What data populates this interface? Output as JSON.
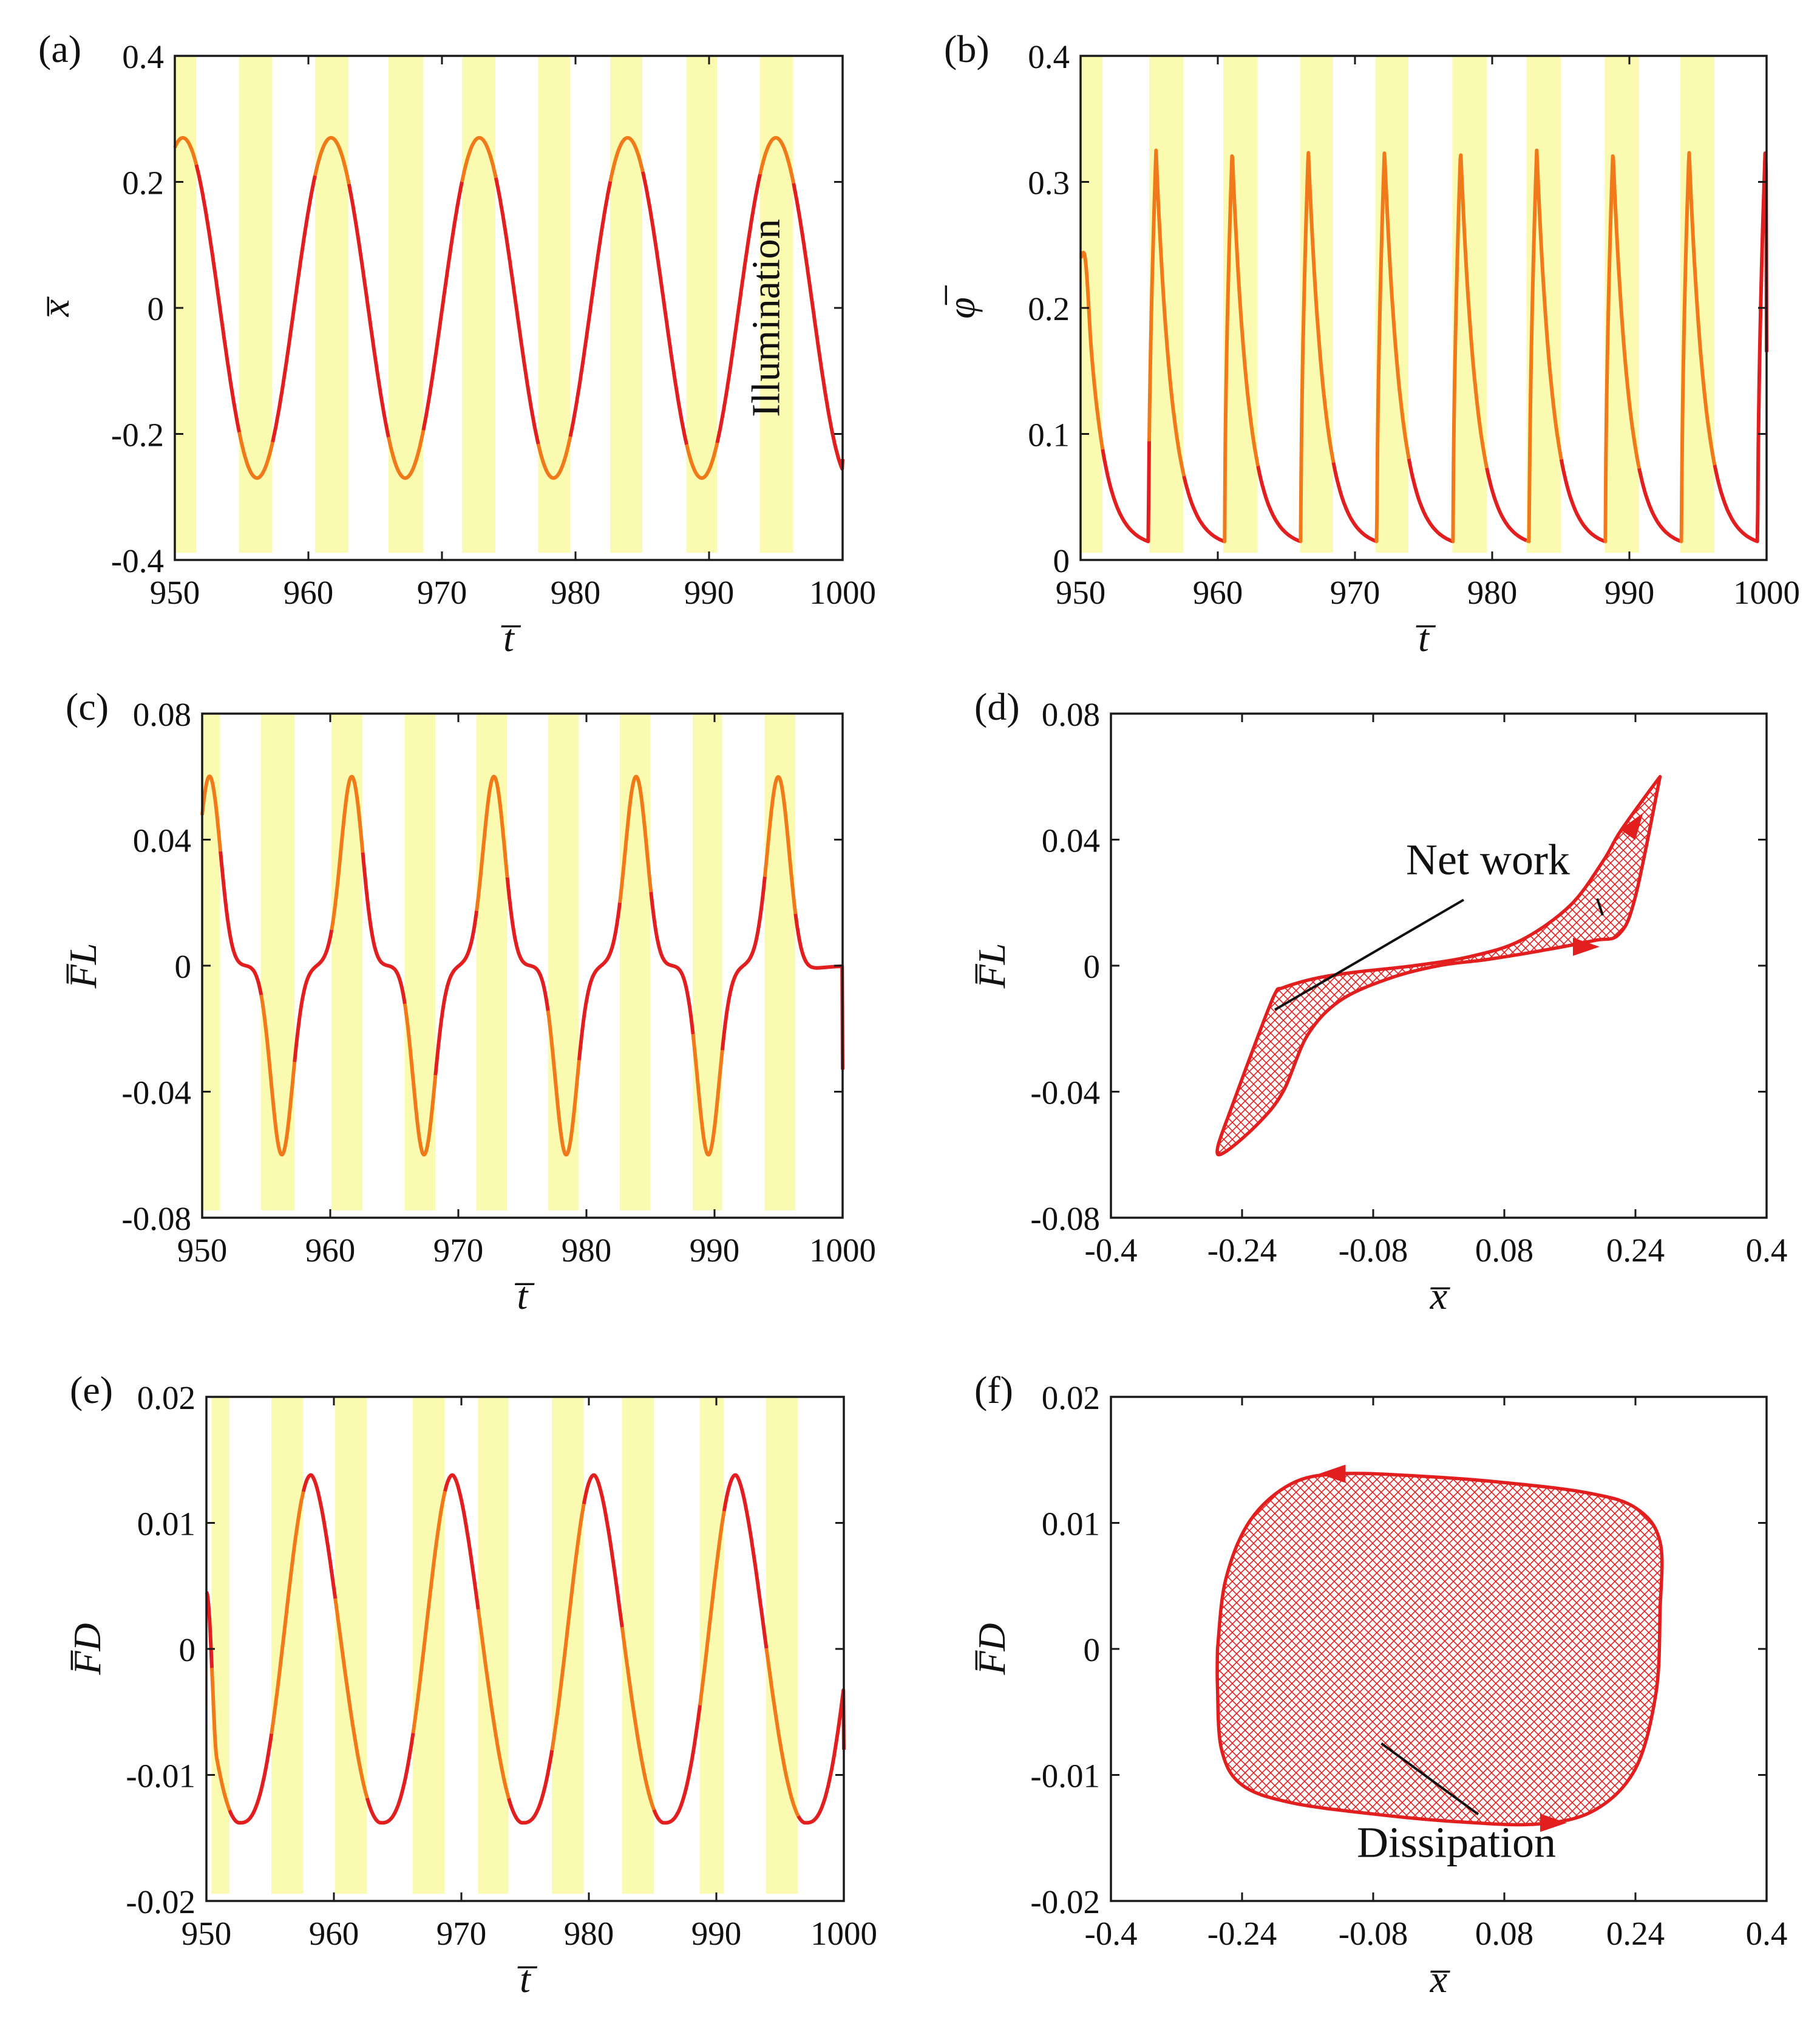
{
  "figure": {
    "illumination_label": "Illumination",
    "colors": {
      "curve": "#e31e1e",
      "curve_lit": "#f07a1a",
      "band": "#fafab0",
      "axes": "#1a1a1a",
      "annotation": "#111111"
    }
  },
  "chart_data": [
    {
      "id": "a",
      "type": "line",
      "panel_label": "(a)",
      "xlabel": "t̅",
      "ylabel": "x̅",
      "xlim": [
        950,
        1000
      ],
      "ylim": [
        -0.4,
        0.4
      ],
      "xticks": [
        950,
        960,
        970,
        980,
        990,
        1000
      ],
      "yticks": [
        -0.4,
        -0.2,
        0,
        0.2,
        0.4
      ],
      "ytick_labels": [
        "-0.4",
        "-0.2",
        "0",
        "0.2",
        "0.4"
      ],
      "illumination_bands": [
        [
          950,
          951.6
        ],
        [
          954.8,
          957.3
        ],
        [
          960.5,
          963
        ],
        [
          966,
          968.6
        ],
        [
          971.5,
          974
        ],
        [
          977.2,
          979.6
        ],
        [
          982.6,
          985
        ],
        [
          988.3,
          990.6
        ],
        [
          993.8,
          996.3
        ]
      ],
      "series": [
        {
          "name": "x",
          "model": "cos",
          "amplitude": 0.27,
          "period": 11.1,
          "peak_at": 950.6,
          "end": [
            1000,
            -0.24
          ]
        }
      ]
    },
    {
      "id": "b",
      "type": "line",
      "panel_label": "(b)",
      "xlabel": "t̅",
      "ylabel": "φ̅",
      "xlim": [
        950,
        1000
      ],
      "ylim": [
        0,
        0.4
      ],
      "xticks": [
        950,
        960,
        970,
        980,
        990,
        1000
      ],
      "yticks": [
        0,
        0.1,
        0.2,
        0.3,
        0.4
      ],
      "ytick_labels": [
        "0",
        "0.1",
        "0.2",
        "0.3",
        "0.4"
      ],
      "illumination_bands": [
        [
          950,
          951.6
        ],
        [
          955,
          957.5
        ],
        [
          960.4,
          962.9
        ],
        [
          966,
          968.4
        ],
        [
          971.5,
          973.9
        ],
        [
          977.1,
          979.6
        ],
        [
          982.5,
          985
        ],
        [
          988.2,
          990.7
        ],
        [
          993.7,
          996.2
        ]
      ],
      "series": [
        {
          "name": "phi",
          "model": "sawtooth",
          "min": 0.01,
          "max": 0.325,
          "period": 5.55,
          "start": [
            950,
            0.24
          ],
          "end": [
            1000,
            0.165
          ]
        }
      ]
    },
    {
      "id": "c",
      "type": "line",
      "panel_label": "(c)",
      "xlabel": "t̅",
      "ylabel": "F̅L",
      "xlim": [
        950,
        1000
      ],
      "ylim": [
        -0.08,
        0.08
      ],
      "xticks": [
        950,
        960,
        970,
        980,
        990,
        1000
      ],
      "yticks": [
        -0.08,
        -0.04,
        0,
        0.04,
        0.08
      ],
      "ytick_labels": [
        "-0.08",
        "-0.04",
        "0",
        "0.04",
        "0.08"
      ],
      "illumination_bands": [
        [
          950,
          951.4
        ],
        [
          954.6,
          957.2
        ],
        [
          960.1,
          962.5
        ],
        [
          965.8,
          968.2
        ],
        [
          971.4,
          973.8
        ],
        [
          977,
          979.4
        ],
        [
          982.6,
          985
        ],
        [
          988.3,
          990.6
        ],
        [
          993.9,
          996.3
        ]
      ],
      "series": [
        {
          "name": "F_L",
          "model": "pulse",
          "amplitude": 0.06,
          "period": 11.1,
          "peaks": [
            950.6,
            961.7,
            972.8,
            983.9,
            995
          ],
          "troughs": [
            956.2,
            967.3,
            978.4,
            989.5
          ],
          "end": [
            1000,
            -0.033
          ]
        }
      ]
    },
    {
      "id": "d",
      "type": "loop",
      "panel_label": "(d)",
      "xlabel": "x̅",
      "ylabel": "F̅L",
      "xlim": [
        -0.4,
        0.4
      ],
      "ylim": [
        -0.08,
        0.08
      ],
      "xticks": [
        -0.4,
        -0.24,
        -0.08,
        0.08,
        0.24,
        0.4
      ],
      "xtick_labels": [
        "-0.4",
        "-0.24",
        "-0.08",
        "0.08",
        "0.24",
        "0.4"
      ],
      "yticks": [
        -0.08,
        -0.04,
        0,
        0.04,
        0.08
      ],
      "ytick_labels": [
        "-0.08",
        "-0.04",
        "0",
        "0.04",
        "0.08"
      ],
      "loop": [
        [
          0.27,
          0.06
        ],
        [
          0.25,
          0.053
        ],
        [
          0.22,
          0.042
        ],
        [
          0.2,
          0.033
        ],
        [
          0.16,
          0.019
        ],
        [
          0.1,
          0.008
        ],
        [
          0.04,
          0.003
        ],
        [
          -0.03,
          0.0
        ],
        [
          -0.1,
          -0.002
        ],
        [
          -0.15,
          -0.004
        ],
        [
          -0.19,
          -0.007
        ],
        [
          -0.2,
          -0.009
        ],
        [
          -0.22,
          -0.022
        ],
        [
          -0.25,
          -0.043
        ],
        [
          -0.27,
          -0.058
        ],
        [
          -0.26,
          -0.059
        ],
        [
          -0.22,
          -0.05
        ],
        [
          -0.19,
          -0.04
        ],
        [
          -0.16,
          -0.022
        ],
        [
          -0.12,
          -0.011
        ],
        [
          -0.06,
          -0.004
        ],
        [
          0.0,
          0.0
        ],
        [
          0.06,
          0.002
        ],
        [
          0.13,
          0.005
        ],
        [
          0.19,
          0.008
        ],
        [
          0.22,
          0.01
        ],
        [
          0.24,
          0.022
        ],
        [
          0.27,
          0.06
        ]
      ],
      "annotation": {
        "text": "Net work",
        "at": [
          -0.04,
          0.029
        ],
        "pointers": [
          [
            -0.2,
            -0.014
          ],
          [
            0.2,
            0.016
          ]
        ]
      },
      "arrows": [
        [
          0.24,
          0.045,
          "up-right"
        ],
        [
          0.18,
          0.006,
          "right"
        ]
      ]
    },
    {
      "id": "e",
      "type": "line",
      "panel_label": "(e)",
      "xlabel": "t̅",
      "ylabel": "F̅D",
      "xlim": [
        950,
        1000
      ],
      "ylim": [
        -0.02,
        0.02
      ],
      "xticks": [
        950,
        960,
        970,
        980,
        990,
        1000
      ],
      "yticks": [
        -0.02,
        -0.01,
        0,
        0.01,
        0.02
      ],
      "ytick_labels": [
        "-0.02",
        "-0.01",
        "0",
        "0.01",
        "0.02"
      ],
      "illumination_bands": [
        [
          950.4,
          951.8
        ],
        [
          955.1,
          957.6
        ],
        [
          960.1,
          962.6
        ],
        [
          966.2,
          968.7
        ],
        [
          971.3,
          973.7
        ],
        [
          977.1,
          979.6
        ],
        [
          982.6,
          985.1
        ],
        [
          988.7,
          990.6
        ],
        [
          993.9,
          996.4
        ]
      ],
      "series": [
        {
          "name": "F_D",
          "model": "tanh",
          "amplitude": 0.0138,
          "period": 11.1,
          "max_at": 958.2,
          "min_at": 952.6,
          "start": [
            950,
            0.0045
          ],
          "end": [
            1000,
            -0.008
          ]
        }
      ]
    },
    {
      "id": "f",
      "type": "loop",
      "panel_label": "(f)",
      "xlabel": "x̅",
      "ylabel": "F̅D",
      "xlim": [
        -0.4,
        0.4
      ],
      "ylim": [
        -0.02,
        0.02
      ],
      "xticks": [
        -0.4,
        -0.24,
        -0.08,
        0.08,
        0.24,
        0.4
      ],
      "xtick_labels": [
        "-0.4",
        "-0.24",
        "-0.08",
        "0.08",
        "0.24",
        "0.4"
      ],
      "yticks": [
        -0.02,
        -0.01,
        0,
        0.01,
        0.02
      ],
      "ytick_labels": [
        "-0.02",
        "-0.01",
        "0",
        "0.01",
        "0.02"
      ],
      "loop": [
        [
          -0.27,
          0.0
        ],
        [
          -0.26,
          0.0055
        ],
        [
          -0.23,
          0.0102
        ],
        [
          -0.18,
          0.0131
        ],
        [
          -0.12,
          0.0139
        ],
        [
          -0.02,
          0.0137
        ],
        [
          0.08,
          0.0132
        ],
        [
          0.18,
          0.0124
        ],
        [
          0.24,
          0.0112
        ],
        [
          0.27,
          0.0085
        ],
        [
          0.27,
          0.003
        ],
        [
          0.265,
          -0.0035
        ],
        [
          0.24,
          -0.0095
        ],
        [
          0.19,
          -0.0128
        ],
        [
          0.12,
          -0.0139
        ],
        [
          0.02,
          -0.0137
        ],
        [
          -0.08,
          -0.0131
        ],
        [
          -0.18,
          -0.0122
        ],
        [
          -0.24,
          -0.0108
        ],
        [
          -0.265,
          -0.008
        ],
        [
          -0.27,
          -0.003
        ],
        [
          -0.27,
          0.0
        ]
      ],
      "annotation": {
        "text": "Dissipation",
        "at": [
          -0.1,
          -0.0165
        ],
        "pointers": [
          [
            -0.07,
            -0.0075
          ]
        ]
      },
      "arrows": [
        [
          -0.13,
          0.0139,
          "left"
        ],
        [
          0.14,
          -0.0138,
          "right"
        ]
      ]
    }
  ]
}
